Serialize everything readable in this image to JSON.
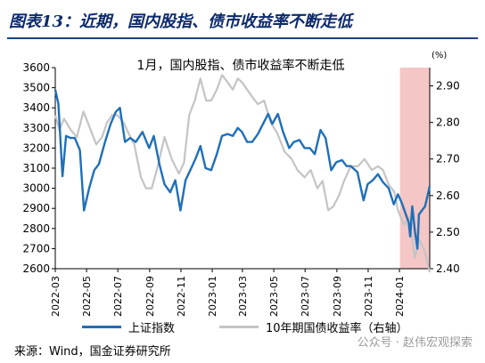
{
  "figure": {
    "title": "图表13：近期，国内股指、债市收益率不断走低",
    "source": "来源：Wind，国金证券研究所",
    "watermark": "公众号 · 赵伟宏观探索"
  },
  "chart_data": {
    "type": "line",
    "title": "1月，国内股指、债市收益率不断走低",
    "right_unit": "(%)",
    "x_range": [
      "2022-03-01",
      "2024-02-29"
    ],
    "x_ticks": [
      "2022-03",
      "2022-05",
      "2022-07",
      "2022-09",
      "2022-11",
      "2023-01",
      "2023-03",
      "2023-05",
      "2023-07",
      "2023-09",
      "2023-11",
      "2024-01"
    ],
    "ylim": [
      2600,
      3600
    ],
    "yticks": [
      2600,
      2700,
      2800,
      2900,
      3000,
      3100,
      3200,
      3300,
      3400,
      3500,
      3600
    ],
    "y2lim": [
      2.4,
      2.95
    ],
    "y2ticks": [
      "2.40",
      "2.50",
      "2.60",
      "2.70",
      "2.80",
      "2.90"
    ],
    "highlight": {
      "from": "2024-01-02",
      "to": "2024-02-29",
      "color": "#f4c6c6"
    },
    "series": [
      {
        "name": "上证指数",
        "axis": "left",
        "color": "#1f6fb8",
        "points": [
          [
            "2022-03-01",
            3490
          ],
          [
            "2022-03-07",
            3420
          ],
          [
            "2022-03-15",
            3060
          ],
          [
            "2022-03-22",
            3260
          ],
          [
            "2022-03-31",
            3250
          ],
          [
            "2022-04-08",
            3250
          ],
          [
            "2022-04-18",
            3190
          ],
          [
            "2022-04-26",
            2890
          ],
          [
            "2022-05-06",
            3000
          ],
          [
            "2022-05-16",
            3090
          ],
          [
            "2022-05-25",
            3120
          ],
          [
            "2022-06-06",
            3230
          ],
          [
            "2022-06-17",
            3320
          ],
          [
            "2022-06-27",
            3380
          ],
          [
            "2022-07-05",
            3400
          ],
          [
            "2022-07-15",
            3230
          ],
          [
            "2022-07-25",
            3250
          ],
          [
            "2022-08-05",
            3230
          ],
          [
            "2022-08-18",
            3280
          ],
          [
            "2022-08-31",
            3200
          ],
          [
            "2022-09-09",
            3260
          ],
          [
            "2022-09-20",
            3120
          ],
          [
            "2022-09-30",
            3020
          ],
          [
            "2022-10-11",
            2980
          ],
          [
            "2022-10-21",
            3040
          ],
          [
            "2022-10-31",
            2890
          ],
          [
            "2022-11-10",
            3040
          ],
          [
            "2022-11-21",
            3100
          ],
          [
            "2022-11-30",
            3150
          ],
          [
            "2022-12-09",
            3210
          ],
          [
            "2022-12-19",
            3100
          ],
          [
            "2022-12-30",
            3090
          ],
          [
            "2023-01-10",
            3170
          ],
          [
            "2023-01-20",
            3260
          ],
          [
            "2023-01-31",
            3270
          ],
          [
            "2023-02-10",
            3260
          ],
          [
            "2023-02-20",
            3300
          ],
          [
            "2023-02-28",
            3280
          ],
          [
            "2023-03-10",
            3230
          ],
          [
            "2023-03-20",
            3230
          ],
          [
            "2023-03-31",
            3270
          ],
          [
            "2023-04-10",
            3320
          ],
          [
            "2023-04-20",
            3370
          ],
          [
            "2023-04-28",
            3320
          ],
          [
            "2023-05-09",
            3370
          ],
          [
            "2023-05-19",
            3280
          ],
          [
            "2023-05-31",
            3200
          ],
          [
            "2023-06-09",
            3230
          ],
          [
            "2023-06-20",
            3240
          ],
          [
            "2023-06-30",
            3200
          ],
          [
            "2023-07-10",
            3200
          ],
          [
            "2023-07-20",
            3170
          ],
          [
            "2023-07-31",
            3290
          ],
          [
            "2023-08-10",
            3250
          ],
          [
            "2023-08-21",
            3090
          ],
          [
            "2023-08-31",
            3130
          ],
          [
            "2023-09-11",
            3140
          ],
          [
            "2023-09-20",
            3110
          ],
          [
            "2023-09-28",
            3110
          ],
          [
            "2023-10-11",
            3080
          ],
          [
            "2023-10-23",
            2940
          ],
          [
            "2023-10-31",
            3020
          ],
          [
            "2023-11-10",
            3040
          ],
          [
            "2023-11-20",
            3070
          ],
          [
            "2023-11-30",
            3030
          ],
          [
            "2023-12-11",
            3000
          ],
          [
            "2023-12-21",
            2920
          ],
          [
            "2023-12-29",
            2970
          ],
          [
            "2024-01-05",
            2930
          ],
          [
            "2024-01-12",
            2880
          ],
          [
            "2024-01-19",
            2830
          ],
          [
            "2024-01-22",
            2760
          ],
          [
            "2024-01-26",
            2910
          ],
          [
            "2024-01-31",
            2790
          ],
          [
            "2024-02-05",
            2700
          ],
          [
            "2024-02-08",
            2870
          ],
          [
            "2024-02-20",
            2910
          ],
          [
            "2024-02-29",
            3010
          ]
        ]
      },
      {
        "name": "10年期国债收益率（右轴）",
        "axis": "right",
        "color": "#c4c4c4",
        "points": [
          [
            "2022-03-01",
            2.82
          ],
          [
            "2022-03-09",
            2.78
          ],
          [
            "2022-03-18",
            2.81
          ],
          [
            "2022-03-31",
            2.78
          ],
          [
            "2022-04-12",
            2.76
          ],
          [
            "2022-04-25",
            2.83
          ],
          [
            "2022-05-06",
            2.79
          ],
          [
            "2022-05-20",
            2.74
          ],
          [
            "2022-05-31",
            2.76
          ],
          [
            "2022-06-10",
            2.8
          ],
          [
            "2022-06-20",
            2.82
          ],
          [
            "2022-06-30",
            2.82
          ],
          [
            "2022-07-12",
            2.8
          ],
          [
            "2022-07-22",
            2.77
          ],
          [
            "2022-08-02",
            2.74
          ],
          [
            "2022-08-15",
            2.65
          ],
          [
            "2022-08-25",
            2.62
          ],
          [
            "2022-09-05",
            2.62
          ],
          [
            "2022-09-15",
            2.67
          ],
          [
            "2022-09-30",
            2.76
          ],
          [
            "2022-10-14",
            2.7
          ],
          [
            "2022-10-28",
            2.66
          ],
          [
            "2022-11-07",
            2.69
          ],
          [
            "2022-11-17",
            2.82
          ],
          [
            "2022-11-28",
            2.86
          ],
          [
            "2022-12-09",
            2.92
          ],
          [
            "2022-12-20",
            2.86
          ],
          [
            "2022-12-30",
            2.86
          ],
          [
            "2023-01-10",
            2.89
          ],
          [
            "2023-01-20",
            2.93
          ],
          [
            "2023-01-31",
            2.91
          ],
          [
            "2023-02-10",
            2.89
          ],
          [
            "2023-02-20",
            2.92
          ],
          [
            "2023-02-28",
            2.91
          ],
          [
            "2023-03-10",
            2.89
          ],
          [
            "2023-03-20",
            2.87
          ],
          [
            "2023-03-31",
            2.85
          ],
          [
            "2023-04-12",
            2.86
          ],
          [
            "2023-04-25",
            2.8
          ],
          [
            "2023-05-08",
            2.77
          ],
          [
            "2023-05-22",
            2.72
          ],
          [
            "2023-06-05",
            2.7
          ],
          [
            "2023-06-16",
            2.67
          ],
          [
            "2023-06-30",
            2.65
          ],
          [
            "2023-07-12",
            2.67
          ],
          [
            "2023-07-25",
            2.62
          ],
          [
            "2023-08-04",
            2.64
          ],
          [
            "2023-08-15",
            2.56
          ],
          [
            "2023-08-25",
            2.57
          ],
          [
            "2023-09-05",
            2.6
          ],
          [
            "2023-09-15",
            2.64
          ],
          [
            "2023-09-28",
            2.68
          ],
          [
            "2023-10-12",
            2.68
          ],
          [
            "2023-10-25",
            2.7
          ],
          [
            "2023-11-08",
            2.67
          ],
          [
            "2023-11-20",
            2.68
          ],
          [
            "2023-11-30",
            2.67
          ],
          [
            "2023-12-11",
            2.63
          ],
          [
            "2023-12-22",
            2.61
          ],
          [
            "2023-12-29",
            2.56
          ],
          [
            "2024-01-10",
            2.52
          ],
          [
            "2024-01-20",
            2.54
          ],
          [
            "2024-01-31",
            2.43
          ],
          [
            "2024-02-08",
            2.48
          ],
          [
            "2024-02-19",
            2.45
          ],
          [
            "2024-02-29",
            2.39
          ]
        ]
      }
    ]
  }
}
